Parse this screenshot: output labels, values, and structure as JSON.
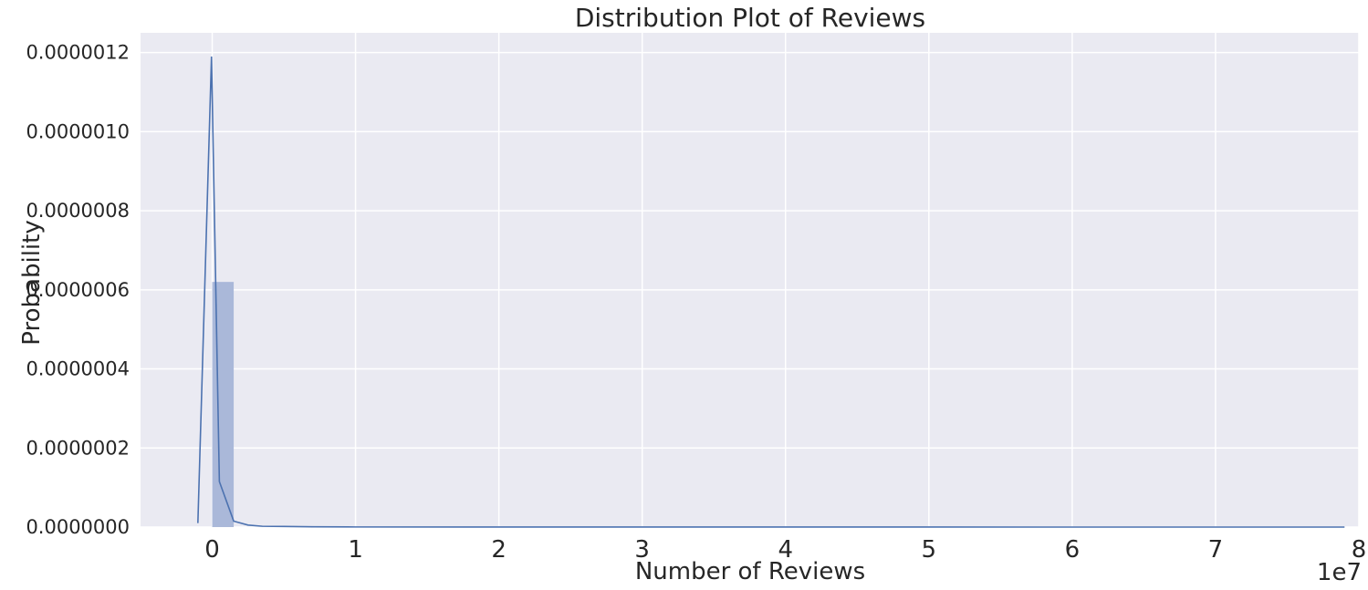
{
  "chart_data": {
    "type": "bar",
    "title": "Distribution Plot of Reviews",
    "xlabel": "Number of Reviews",
    "ylabel": "Probability",
    "x_offset_label": "1e7",
    "xlim": [
      -5000000,
      80000000
    ],
    "ylim": [
      0,
      1.25e-06
    ],
    "xticks": [
      0,
      10000000,
      20000000,
      30000000,
      40000000,
      50000000,
      60000000,
      70000000,
      80000000
    ],
    "xtick_labels": [
      "0",
      "1",
      "2",
      "3",
      "4",
      "5",
      "6",
      "7",
      "8"
    ],
    "yticks": [
      0,
      2e-07,
      4e-07,
      6e-07,
      8e-07,
      1e-06,
      1.2e-06
    ],
    "ytick_labels": [
      "0.0000000",
      "0.0000002",
      "0.0000004",
      "0.0000006",
      "0.0000008",
      "0.0000010",
      "0.0000012"
    ],
    "grid": true,
    "histogram": {
      "bins": [
        {
          "x0": 0,
          "x1": 1500000,
          "density": 6.2e-07
        }
      ]
    },
    "kde": {
      "x": [
        -1000000,
        -50000,
        500000,
        1500000,
        2500000,
        3500000,
        5000000,
        7000000,
        10000000,
        20000000,
        40000000,
        60000000,
        79000000
      ],
      "y": [
        1e-08,
        1.19e-06,
        1.15e-07,
        1.5e-08,
        5e-09,
        2e-09,
        1.5e-09,
        8e-10,
        3e-10,
        1e-10,
        5e-11,
        2e-11,
        1e-11
      ]
    },
    "colors": {
      "background": "#eaeaf2",
      "grid": "#ffffff",
      "bar": "#aab8d9",
      "line": "#4c72b0"
    }
  }
}
